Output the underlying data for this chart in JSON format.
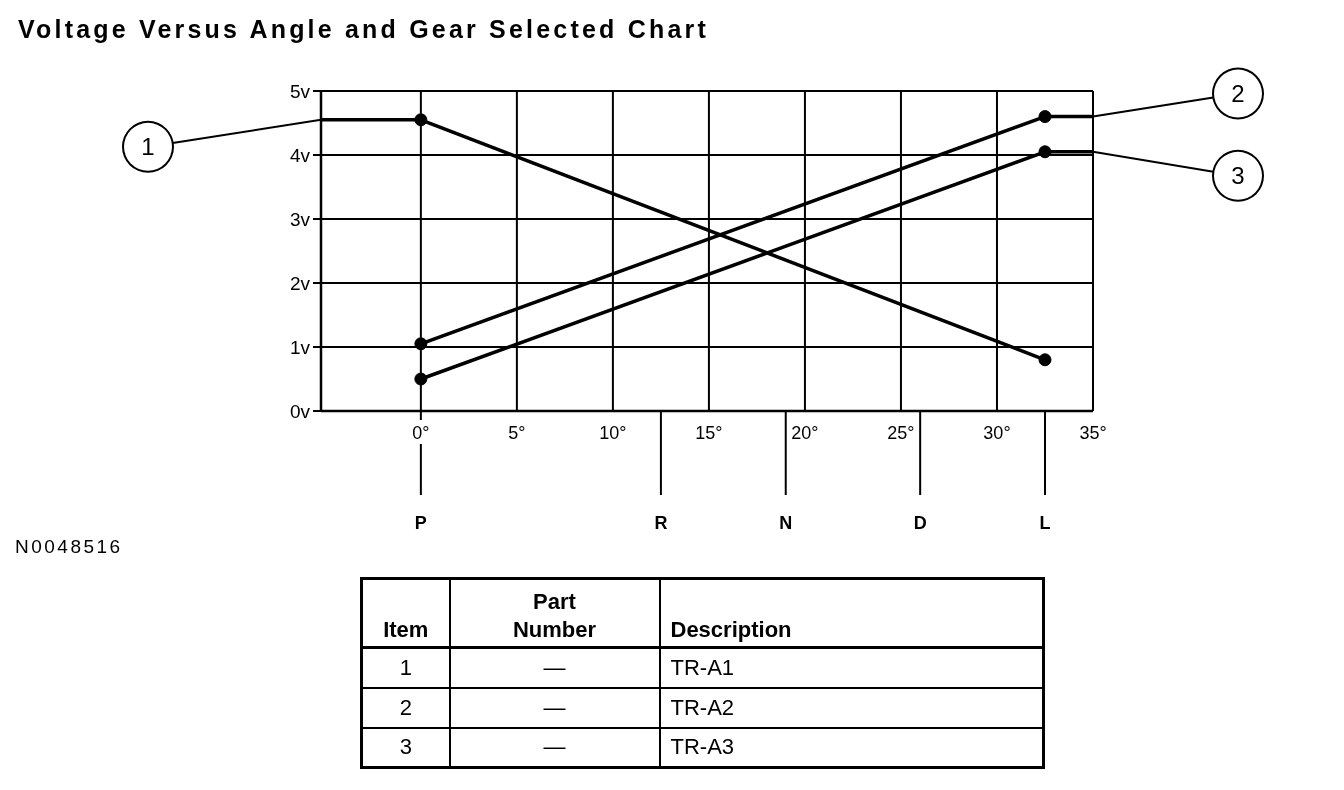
{
  "chart_data": [
    {
      "type": "line",
      "title": "Voltage Versus Angle and Gear Selected Chart",
      "x": [
        0,
        32.5
      ],
      "series": [
        {
          "name": "1",
          "color": "#000000",
          "values": [
            4.55,
            0.8
          ]
        },
        {
          "name": "2",
          "color": "#000000",
          "values": [
            1.05,
            4.6
          ]
        },
        {
          "name": "3",
          "color": "#000000",
          "values": [
            0.5,
            4.05
          ]
        },
        {
          "color": "#000000",
          "x": [
            -5.2,
            0
          ],
          "values": [
            4.55,
            4.55
          ],
          "marker": "none"
        },
        {
          "color": "#000000",
          "x": [
            32.5,
            35
          ],
          "values": [
            4.6,
            4.6
          ],
          "marker": "none"
        },
        {
          "color": "#000000",
          "x": [
            32.5,
            35
          ],
          "values": [
            4.05,
            4.05
          ],
          "marker": "none"
        }
      ],
      "xlim": [
        -5.2,
        35
      ],
      "xticks": [
        {
          "value": 0,
          "label": "0°"
        },
        {
          "value": 5,
          "label": "5°"
        },
        {
          "value": 10,
          "label": "10°"
        },
        {
          "value": 15,
          "label": "15°"
        },
        {
          "value": 20,
          "label": "20°"
        },
        {
          "value": 25,
          "label": "25°"
        },
        {
          "value": 30,
          "label": "30°"
        },
        {
          "value": 35,
          "label": "35°"
        }
      ],
      "ylim": [
        0,
        5
      ],
      "yticks": [
        {
          "value": 0,
          "label": "0v"
        },
        {
          "value": 1,
          "label": "1v"
        },
        {
          "value": 2,
          "label": "2v"
        },
        {
          "value": 3,
          "label": "3v"
        },
        {
          "value": 4,
          "label": "4v"
        },
        {
          "value": 5,
          "label": "5v"
        }
      ],
      "ref_lines": [
        {
          "axis": "x",
          "value": 0,
          "label": "P"
        },
        {
          "axis": "x",
          "value": 12.5,
          "label": "R"
        },
        {
          "axis": "x",
          "value": 19,
          "label": "N"
        },
        {
          "axis": "x",
          "value": 26,
          "label": "D"
        },
        {
          "axis": "x",
          "value": 32.5,
          "label": "L"
        }
      ],
      "grid": true,
      "marker": "circle",
      "line_style": "solid",
      "annotations": [
        "N0048516"
      ]
    },
    {
      "type": "other",
      "categories": [
        "Item",
        "Part Number",
        "Description"
      ],
      "annotations": [
        "1",
        "—",
        "TR-A1",
        "2",
        "—",
        "TR-A2",
        "3",
        "—",
        "TR-A3"
      ]
    }
  ]
}
